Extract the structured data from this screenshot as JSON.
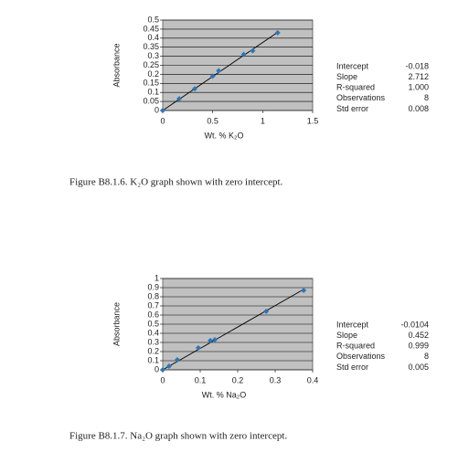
{
  "chart_data": [
    {
      "type": "scatter",
      "x_label": "Wt. % K₂O",
      "y_label": "Absorbance",
      "x": [
        0,
        0.165,
        0.32,
        0.5,
        0.56,
        0.81,
        0.9,
        1.15
      ],
      "values": [
        0,
        0.065,
        0.12,
        0.19,
        0.22,
        0.31,
        0.33,
        0.43
      ],
      "color": "#2e75b6",
      "background": "#c0c0c0",
      "grid": true,
      "trendline": true,
      "xlim": [
        0,
        1.5
      ],
      "xticks": [
        0,
        0.5,
        1,
        1.5
      ],
      "ylim": [
        0,
        0.5
      ],
      "yticks": [
        0,
        0.05,
        0.1,
        0.15,
        0.2,
        0.25,
        0.3,
        0.35,
        0.4,
        0.45,
        0.5
      ]
    },
    {
      "type": "scatter",
      "x_label": "Wt. % Na₂O",
      "y_label": "Absorbance",
      "x": [
        0,
        0.017,
        0.039,
        0.095,
        0.127,
        0.139,
        0.276,
        0.376
      ],
      "values": [
        0,
        0.04,
        0.11,
        0.24,
        0.32,
        0.33,
        0.64,
        0.87
      ],
      "color": "#2e75b6",
      "background": "#c0c0c0",
      "grid": true,
      "trendline": true,
      "xlim": [
        0,
        0.4
      ],
      "xticks": [
        0,
        0.1,
        0.2,
        0.3,
        0.4
      ],
      "ylim": [
        0,
        1
      ],
      "yticks": [
        0,
        0.1,
        0.2,
        0.3,
        0.4,
        0.5,
        0.6,
        0.7,
        0.8,
        0.9,
        1
      ]
    }
  ],
  "stats": [
    [
      [
        "Intercept",
        "-0.018"
      ],
      [
        "Slope",
        "2.712"
      ],
      [
        "R-squared",
        "1.000"
      ],
      [
        "Observations",
        "8"
      ],
      [
        "Std error",
        "0.008"
      ]
    ],
    [
      [
        "Intercept",
        "-0.0104"
      ],
      [
        "Slope",
        "0.452"
      ],
      [
        "R-squared",
        "0.999"
      ],
      [
        "Observations",
        "8"
      ],
      [
        "Std error",
        "0.005"
      ]
    ]
  ],
  "captions": [
    "Figure B8.1.6. K₂O graph shown with zero intercept.",
    "Figure B8.1.7. Na₂O graph shown with zero intercept."
  ]
}
